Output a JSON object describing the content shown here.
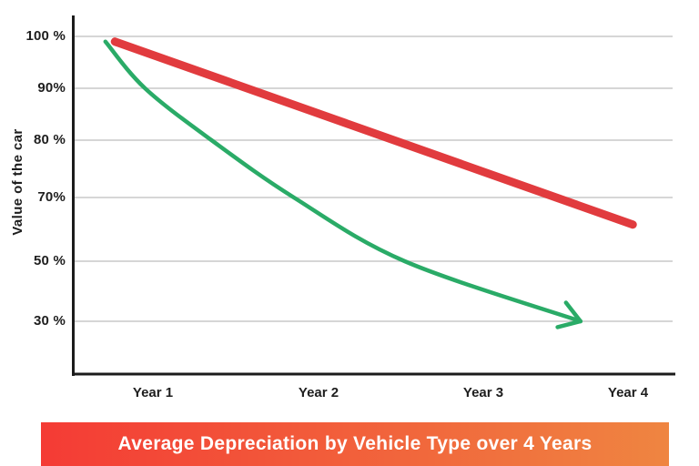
{
  "page": {
    "background": "#ffffff"
  },
  "banner": {
    "title": "Average Depreciation by Vehicle Type over 4 Years",
    "text_color": "#ffffff",
    "gradient_left": "#f43b35",
    "gradient_right": "#ef8541"
  },
  "axis": {
    "color": "#1b1b1b",
    "grid_color": "#c8c8c8",
    "label_color": "#1e1e1e"
  },
  "chart_data": {
    "type": "line",
    "title": "Average Depreciation by Vehicle Type over 4 Years",
    "xlabel": "",
    "ylabel": "Value of the car",
    "x_tick_labels": [
      "Year 1",
      "Year 2",
      "Year 3",
      "Year 4"
    ],
    "y_tick_labels": [
      "100 %",
      "90%",
      "80 %",
      "70%",
      "50 %",
      "30 %"
    ],
    "y_tick_values": [
      100,
      90,
      80,
      70,
      50,
      30
    ],
    "y_axis_note": "ticks evenly spaced although values skip 60% and 40%",
    "grid": true,
    "legend_position": "none",
    "series": [
      {
        "name": "red-straight-line",
        "color": "#e13b3e",
        "stroke_width": 9,
        "shape": "straight",
        "arrow": false,
        "points": [
          {
            "year": 0.76,
            "value": 99
          },
          {
            "year": 4.03,
            "value": 61.5
          }
        ]
      },
      {
        "name": "green-curved-line",
        "color": "#2aab67",
        "stroke_width": 4.5,
        "shape": "curved",
        "arrow": true,
        "points": [
          {
            "year": 0.7,
            "value": 99
          },
          {
            "year": 0.95,
            "value": 90
          },
          {
            "year": 1.37,
            "value": 80
          },
          {
            "year": 1.89,
            "value": 70
          },
          {
            "year": 2.59,
            "value": 50
          },
          {
            "year": 3.7,
            "value": 30
          }
        ]
      }
    ]
  }
}
